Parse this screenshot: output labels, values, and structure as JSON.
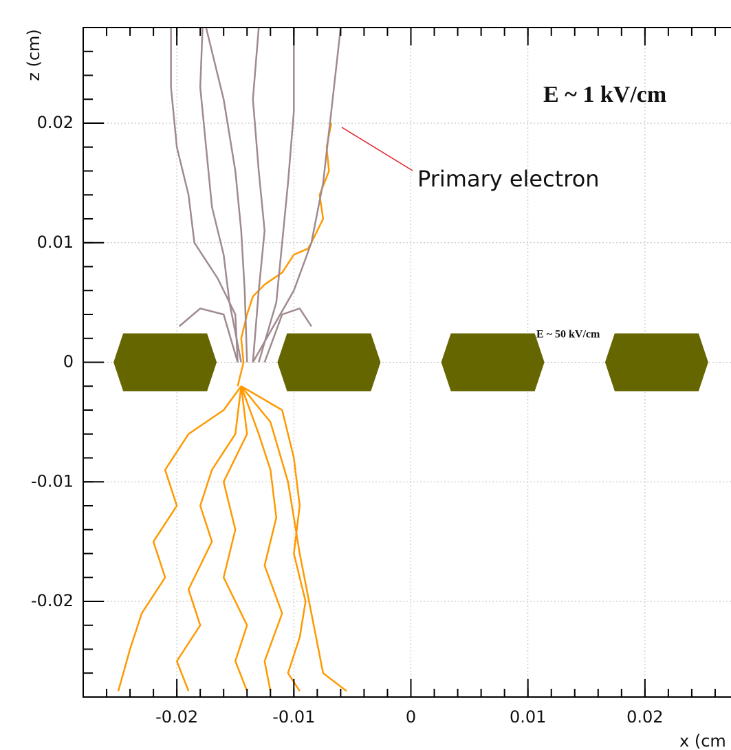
{
  "chart_data": {
    "type": "line",
    "y_label": "z (cm)",
    "x_label": "x (cm",
    "xlim": [
      -0.028,
      0.028
    ],
    "ylim": [
      -0.028,
      0.028
    ],
    "xticks": [
      -0.02,
      -0.01,
      0,
      0.01,
      0.02
    ],
    "yticks": [
      0.02,
      0.01,
      0,
      -0.01,
      -0.02
    ],
    "grid": true,
    "annotations": [
      "E ~ 1 kV/cm",
      "E ~ 50 kV/cm",
      "Primary electron"
    ],
    "electrodes": {
      "color": "#666600",
      "x": [
        -0.021,
        -0.007,
        0.007,
        0.021
      ]
    },
    "series": [
      {
        "color": "#ff9900",
        "x": [
          -0.0068,
          -0.0072,
          -0.007,
          -0.0078,
          -0.0075,
          -0.0085,
          -0.0088,
          -0.01,
          -0.011,
          -0.0125,
          -0.0135,
          -0.014,
          -0.0145,
          -0.0143,
          -0.0148
        ],
        "values": [
          0.02,
          0.018,
          0.016,
          0.014,
          0.012,
          0.01,
          0.0095,
          0.009,
          0.0075,
          0.0065,
          0.0055,
          0.004,
          0.002,
          0,
          -0.002
        ]
      },
      {
        "color": "#ff9900",
        "x": [
          -0.0145,
          -0.016,
          -0.019,
          -0.021,
          -0.02,
          -0.022,
          -0.021,
          -0.023,
          -0.024,
          -0.025
        ],
        "values": [
          -0.002,
          -0.004,
          -0.006,
          -0.009,
          -0.012,
          -0.015,
          -0.018,
          -0.021,
          -0.024,
          -0.0275
        ]
      },
      {
        "color": "#ff9900",
        "x": [
          -0.0145,
          -0.015,
          -0.017,
          -0.018,
          -0.017,
          -0.019,
          -0.018,
          -0.02,
          -0.019
        ],
        "values": [
          -0.002,
          -0.006,
          -0.009,
          -0.012,
          -0.015,
          -0.019,
          -0.022,
          -0.025,
          -0.0275
        ]
      },
      {
        "color": "#ff9900",
        "x": [
          -0.0145,
          -0.014,
          -0.016,
          -0.015,
          -0.016,
          -0.014,
          -0.015,
          -0.014
        ],
        "values": [
          -0.002,
          -0.006,
          -0.01,
          -0.014,
          -0.018,
          -0.022,
          -0.025,
          -0.0275
        ]
      },
      {
        "color": "#ff9900",
        "x": [
          -0.0145,
          -0.013,
          -0.012,
          -0.0115,
          -0.0125,
          -0.011,
          -0.0125,
          -0.012
        ],
        "values": [
          -0.002,
          -0.006,
          -0.009,
          -0.013,
          -0.017,
          -0.021,
          -0.025,
          -0.0275
        ]
      },
      {
        "color": "#ff9900",
        "x": [
          -0.0145,
          -0.011,
          -0.01,
          -0.0095,
          -0.01,
          -0.009,
          -0.0095,
          -0.0105,
          -0.0095
        ],
        "values": [
          -0.002,
          -0.004,
          -0.008,
          -0.012,
          -0.016,
          -0.02,
          -0.023,
          -0.026,
          -0.0275
        ]
      },
      {
        "color": "#ff9900",
        "x": [
          -0.0145,
          -0.012,
          -0.0105,
          -0.0095,
          -0.0085,
          -0.0075,
          -0.0055
        ],
        "values": [
          -0.002,
          -0.005,
          -0.01,
          -0.016,
          -0.021,
          -0.026,
          -0.0275
        ]
      },
      {
        "color": "#a08a8e",
        "x": [
          -0.0148,
          -0.015,
          -0.0165,
          -0.0185,
          -0.019,
          -0.02,
          -0.0205,
          -0.0205
        ],
        "values": [
          0,
          0.004,
          0.007,
          0.01,
          0.014,
          0.018,
          0.023,
          0.028
        ]
      },
      {
        "color": "#a08a8e",
        "x": [
          -0.0145,
          -0.0155,
          -0.016,
          -0.017,
          -0.0175,
          -0.018,
          -0.0178
        ],
        "values": [
          0,
          0.005,
          0.009,
          0.013,
          0.018,
          0.023,
          0.028
        ]
      },
      {
        "color": "#a08a8e",
        "x": [
          -0.014,
          -0.0142,
          -0.0145,
          -0.015,
          -0.016,
          -0.0175
        ],
        "values": [
          0,
          0.006,
          0.011,
          0.016,
          0.022,
          0.028
        ]
      },
      {
        "color": "#a08a8e",
        "x": [
          -0.0135,
          -0.013,
          -0.0125,
          -0.013,
          -0.0135,
          -0.013
        ],
        "values": [
          0,
          0.006,
          0.011,
          0.016,
          0.022,
          0.028
        ]
      },
      {
        "color": "#a08a8e",
        "x": [
          -0.013,
          -0.0115,
          -0.011,
          -0.0105,
          -0.01,
          -0.01
        ],
        "values": [
          0,
          0.005,
          0.01,
          0.015,
          0.021,
          0.028
        ]
      },
      {
        "color": "#a08a8e",
        "x": [
          -0.0135,
          -0.01,
          -0.0085,
          -0.0075,
          -0.0068,
          -0.006
        ],
        "values": [
          0,
          0.006,
          0.01,
          0.015,
          0.021,
          0.028
        ]
      },
      {
        "color": "#a08a8e",
        "x": [
          -0.0198,
          -0.018,
          -0.016,
          -0.0148
        ],
        "values": [
          0.003,
          0.0045,
          0.004,
          0
        ]
      },
      {
        "color": "#a08a8e",
        "x": [
          -0.0085,
          -0.0095,
          -0.011,
          -0.0125
        ],
        "values": [
          0.003,
          0.0045,
          0.004,
          0
        ]
      }
    ]
  }
}
